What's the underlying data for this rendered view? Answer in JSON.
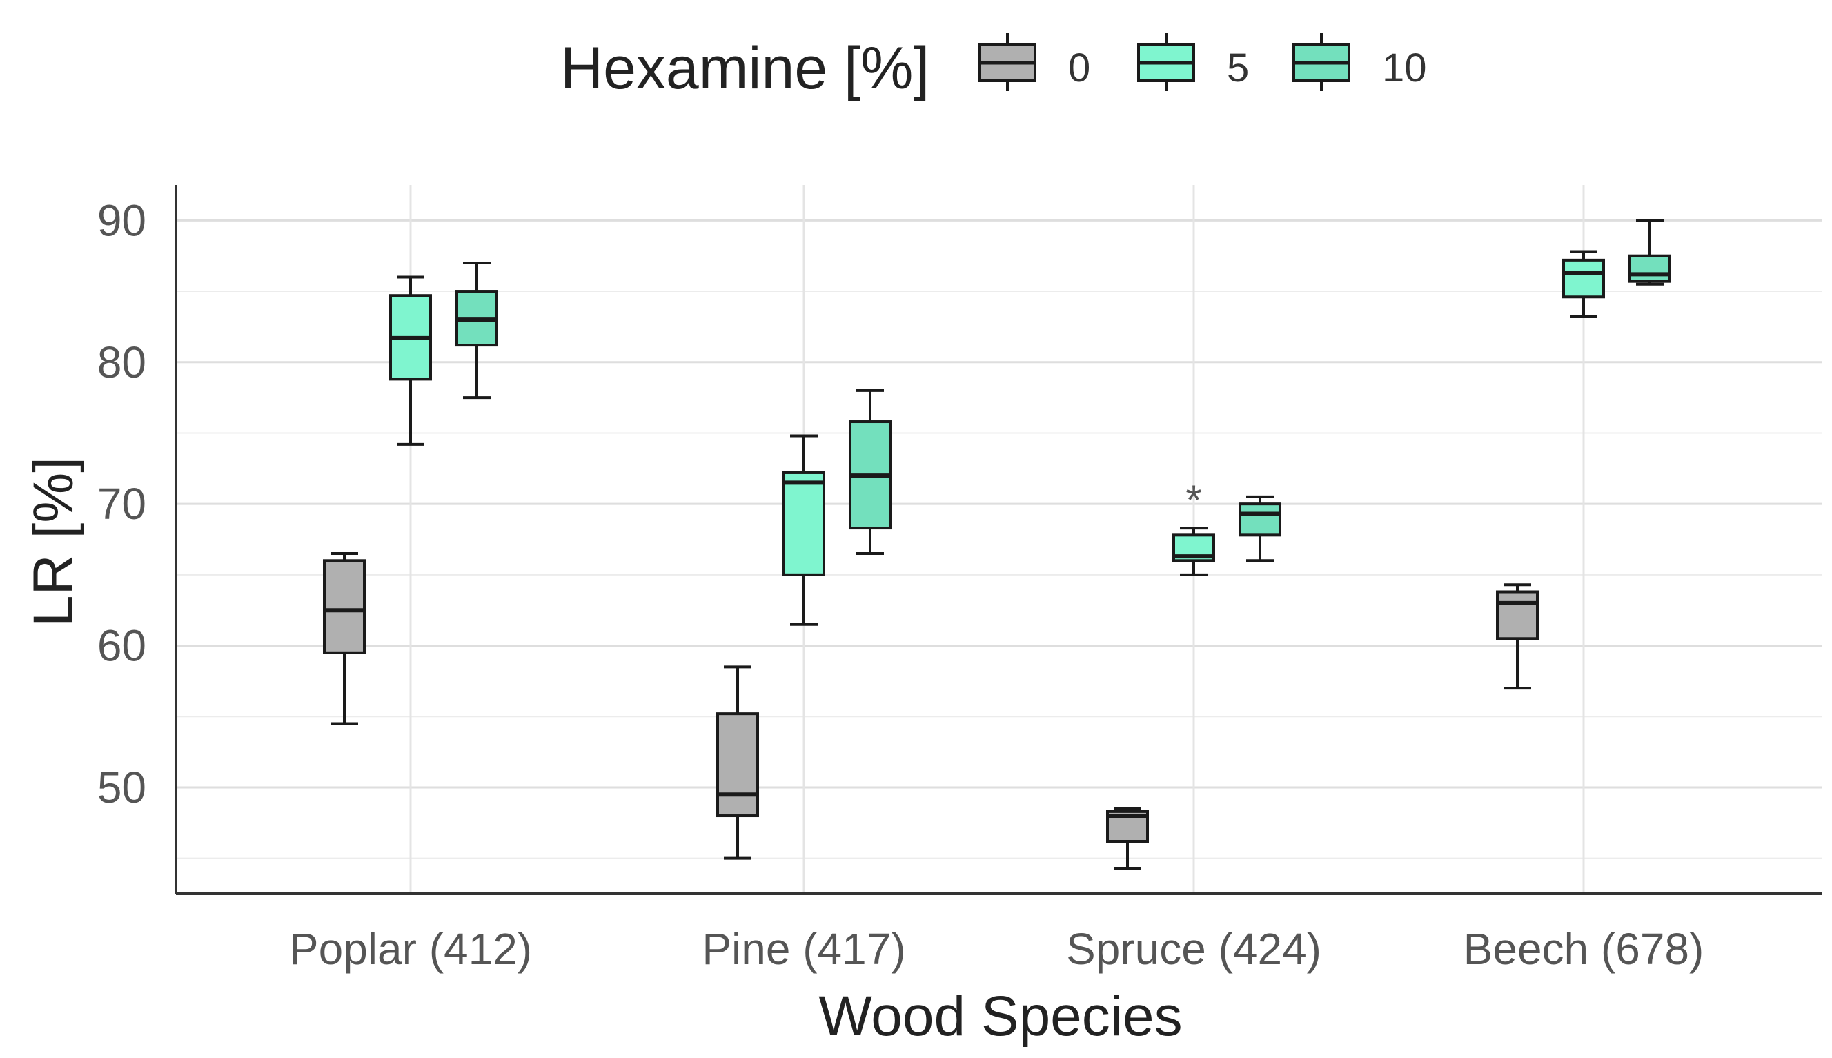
{
  "chart_data": {
    "type": "boxplot",
    "title": "",
    "xlabel": "Wood Species",
    "ylabel": "LR [%]",
    "ylim": [
      42.5,
      92.5
    ],
    "yticks": [
      50,
      60,
      70,
      80,
      90
    ],
    "ytick_labels": [
      "50",
      "60",
      "70",
      "80",
      "90"
    ],
    "grid": true,
    "legend": {
      "title": "Hexamine [%]",
      "position": "top",
      "entries": [
        {
          "label": "0",
          "color": "#b0b0b0"
        },
        {
          "label": "5",
          "color": "#7ff5cf"
        },
        {
          "label": "10",
          "color": "#73e0bd"
        }
      ]
    },
    "categories": [
      "Poplar (412)",
      "Pine (417)",
      "Spruce (424)",
      "Beech (678)"
    ],
    "series": [
      {
        "name": "0",
        "color": "#b0b0b0",
        "boxes": [
          {
            "min": 54.5,
            "q1": 59.5,
            "median": 62.5,
            "q3": 66.0,
            "max": 66.5
          },
          {
            "min": 45.0,
            "q1": 48.0,
            "median": 49.5,
            "q3": 55.2,
            "max": 58.5
          },
          {
            "min": 44.3,
            "q1": 46.2,
            "median": 48.0,
            "q3": 48.3,
            "max": 48.5
          },
          {
            "min": 57.0,
            "q1": 60.5,
            "median": 63.0,
            "q3": 63.8,
            "max": 64.3
          }
        ]
      },
      {
        "name": "5",
        "color": "#7ff5cf",
        "boxes": [
          {
            "min": 74.2,
            "q1": 78.8,
            "median": 81.7,
            "q3": 84.7,
            "max": 86.0
          },
          {
            "min": 61.5,
            "q1": 65.0,
            "median": 71.5,
            "q3": 72.2,
            "max": 74.8
          },
          {
            "min": 65.0,
            "q1": 66.0,
            "median": 66.3,
            "q3": 67.8,
            "max": 68.3
          },
          {
            "min": 83.2,
            "q1": 84.6,
            "median": 86.3,
            "q3": 87.2,
            "max": 87.8
          }
        ]
      },
      {
        "name": "10",
        "color": "#73e0bd",
        "boxes": [
          {
            "min": 77.5,
            "q1": 81.2,
            "median": 83.0,
            "q3": 85.0,
            "max": 87.0
          },
          {
            "min": 66.5,
            "q1": 68.3,
            "median": 72.0,
            "q3": 75.8,
            "max": 78.0
          },
          {
            "min": 66.0,
            "q1": 67.8,
            "median": 69.3,
            "q3": 70.0,
            "max": 70.5
          },
          {
            "min": 85.5,
            "q1": 85.7,
            "median": 86.2,
            "q3": 87.5,
            "max": 90.0
          }
        ]
      }
    ],
    "annotations": [
      {
        "text": "*",
        "category": "Spruce (424)",
        "series": "5"
      }
    ]
  }
}
